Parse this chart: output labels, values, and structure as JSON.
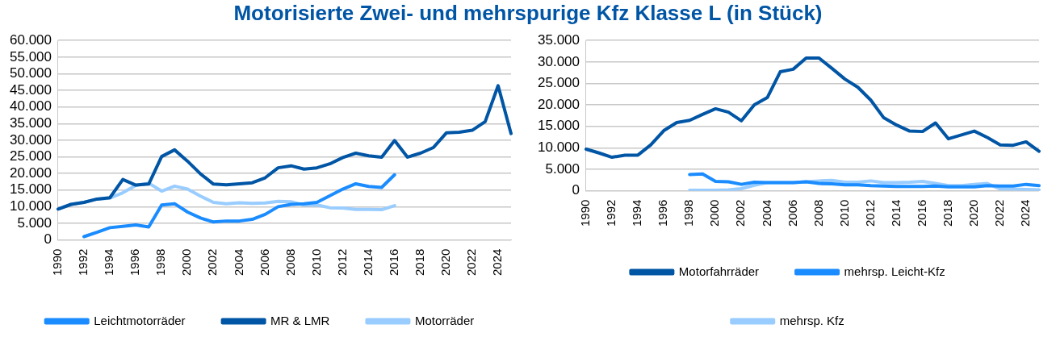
{
  "chart_data": [
    {
      "type": "line",
      "title": "Motorisierte Zwei- und mehrspurige Kfz Klasse L (in Stück)",
      "categories": [
        "1990",
        null,
        "1992",
        null,
        "1994",
        null,
        "1996",
        null,
        "1998",
        null,
        "2000",
        null,
        "2002",
        null,
        "2004",
        null,
        "2006",
        null,
        "2008",
        null,
        "2010",
        null,
        "2012",
        null,
        "2014",
        null,
        "2016",
        null,
        "2018",
        null,
        "2020",
        null,
        "2022",
        null,
        "2024",
        null
      ],
      "series": [
        {
          "name": "Leichtmotorräder",
          "color": "#1a8cff",
          "values": [
            null,
            null,
            1000,
            2300,
            3700,
            4100,
            4500,
            3900,
            10500,
            10900,
            8400,
            6600,
            5400,
            5700,
            5700,
            6200,
            7700,
            10000,
            10700,
            10900,
            11300,
            13300,
            15300,
            16900,
            16100,
            15800,
            19600,
            null,
            null,
            null,
            null,
            null,
            null,
            null,
            null,
            null
          ]
        },
        {
          "name": "MR & LMR",
          "color": "#0055a5",
          "values": [
            9300,
            10700,
            11300,
            12300,
            12700,
            18200,
            16500,
            16800,
            25100,
            27100,
            23700,
            19900,
            16800,
            16600,
            16900,
            17200,
            18700,
            21700,
            22300,
            21300,
            21700,
            22900,
            24800,
            26100,
            25300,
            24900,
            29900,
            24900,
            26100,
            27800,
            32200,
            32400,
            33000,
            35600,
            46400,
            32000
          ]
        },
        {
          "name": "Motorräder",
          "color": "#99ccff",
          "values": [
            9300,
            10700,
            11300,
            12300,
            12600,
            14200,
            16400,
            17100,
            14700,
            16200,
            15300,
            13200,
            11300,
            10900,
            11200,
            11000,
            11100,
            11600,
            11500,
            10500,
            10500,
            9700,
            9600,
            9200,
            9200,
            9100,
            10300,
            null,
            null,
            null,
            null,
            null,
            null,
            null,
            null,
            null
          ]
        }
      ],
      "ylim": [
        0,
        60000
      ],
      "yticks": [
        0,
        {
          "value": 5000,
          "label": "5.000"
        },
        {
          "value": 10000,
          "label": "10.000"
        },
        {
          "value": 15000,
          "label": "15.000"
        },
        {
          "value": 20000,
          "label": "20.000"
        },
        {
          "value": 25000,
          "label": "25.000"
        },
        {
          "value": 30000,
          "label": "30.000"
        },
        {
          "value": 35000,
          "label": "35.000"
        },
        {
          "value": 40000,
          "label": "40.000"
        },
        {
          "value": 45000,
          "label": "45.000"
        },
        {
          "value": 50000,
          "label": "50.000"
        },
        {
          "value": 55000,
          "label": "55.000"
        },
        {
          "value": 60000,
          "label": "60.000"
        }
      ],
      "grid": "y",
      "legend": "bottom",
      "marker": "none",
      "line_style": "solid"
    },
    {
      "type": "line",
      "categories": [
        "1990",
        null,
        "1992",
        null,
        "1994",
        null,
        "1996",
        null,
        "1998",
        null,
        "2000",
        null,
        "2002",
        null,
        "2004",
        null,
        "2006",
        null,
        "2008",
        null,
        "2010",
        null,
        "2012",
        null,
        "2014",
        null,
        "2016",
        null,
        "2018",
        null,
        "2020",
        null,
        "2022",
        null,
        "2024",
        null
      ],
      "series": [
        {
          "name": "Motorfahrräder",
          "color": "#0055a5",
          "values": [
            9700,
            8800,
            7800,
            8300,
            8300,
            10700,
            14000,
            15900,
            16400,
            17800,
            19100,
            18300,
            16300,
            20000,
            21700,
            27700,
            28300,
            30900,
            30900,
            28500,
            26000,
            24100,
            21100,
            17000,
            15300,
            13900,
            13800,
            15800,
            12100,
            13000,
            13900,
            12400,
            10700,
            10600,
            11400,
            9200
          ]
        },
        {
          "name": "mehrsp. Leicht-Kfz",
          "color": "#1a8cff",
          "values": [
            null,
            null,
            null,
            null,
            null,
            null,
            null,
            null,
            3800,
            3900,
            2200,
            2100,
            1500,
            2000,
            1900,
            1900,
            1900,
            2100,
            1700,
            1600,
            1400,
            1400,
            1200,
            1100,
            1000,
            1000,
            1000,
            1100,
            900,
            900,
            900,
            1200,
            1100,
            1100,
            1500,
            1200
          ]
        },
        {
          "name": "mehrsp. Kfz",
          "color": "#99ccff",
          "values": [
            null,
            null,
            null,
            null,
            null,
            null,
            null,
            null,
            100,
            100,
            100,
            200,
            500,
            1300,
            1900,
            1900,
            1900,
            2100,
            2300,
            2400,
            2000,
            2000,
            2300,
            1900,
            1900,
            2000,
            2200,
            1700,
            1200,
            1200,
            1500,
            1700,
            400,
            400,
            300,
            200
          ]
        }
      ],
      "ylim": [
        0,
        35000
      ],
      "yticks": [
        0,
        {
          "value": 5000,
          "label": "5.000"
        },
        {
          "value": 10000,
          "label": "10.000"
        },
        {
          "value": 15000,
          "label": "15.000"
        },
        {
          "value": 20000,
          "label": "20.000"
        },
        {
          "value": 25000,
          "label": "25.000"
        },
        {
          "value": 30000,
          "label": "30.000"
        },
        {
          "value": 35000,
          "label": "35.000"
        }
      ],
      "grid": "y",
      "legend": "bottom",
      "marker": "none",
      "line_style": "solid"
    }
  ]
}
